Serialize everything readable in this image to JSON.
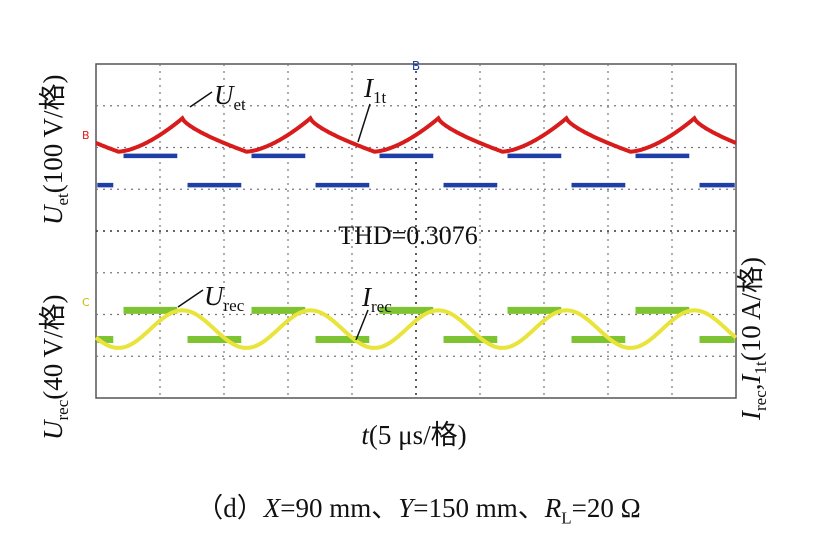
{
  "chart_data": {
    "type": "line",
    "title": "",
    "xlabel": "t(5 μs/格)",
    "ylabel_left": "Uet(100 V/格) Urec(40 V/格)",
    "ylabel_right": "Irec,I1t(10 A/格)",
    "divisions": {
      "x": 10,
      "y": 8
    },
    "period_div": 2,
    "annotation": "THD=0.3076",
    "series": [
      {
        "name": "Uet",
        "color": "#1f3fa6",
        "kind": "square",
        "high_div": 5.8,
        "low_div": 5.1,
        "unit": "100 V/格"
      },
      {
        "name": "I1t",
        "color": "#d81b1b",
        "kind": "current",
        "center_div": 6.3,
        "amp_div": 0.4,
        "unit": "10 A/格"
      },
      {
        "name": "Urec",
        "color": "#7ec332",
        "kind": "square",
        "high_div": 2.1,
        "low_div": 1.4,
        "unit": "40 V/格"
      },
      {
        "name": "Irec",
        "color": "#e8e43a",
        "kind": "sine",
        "center_div": 1.65,
        "amp_div": 0.45,
        "unit": "10 A/格"
      }
    ],
    "labels": {
      "uet": {
        "main": "U",
        "sub": "et"
      },
      "i1t": {
        "main": "I",
        "sub": "1t"
      },
      "urec": {
        "main": "U",
        "sub": "rec"
      },
      "irec": {
        "main": "I",
        "sub": "rec"
      }
    }
  },
  "axis_text": {
    "left_top": {
      "main": "U",
      "sub": "et",
      "rest": "(100 V/格)"
    },
    "left_bottom": {
      "main": "U",
      "sub": "rec",
      "rest": "(40 V/格)"
    },
    "right": {
      "a": "I",
      "a_sub": "rec",
      "sep": ",",
      "b": "I",
      "b_sub": "1t",
      "rest": "(10 A/格)"
    },
    "bottom": {
      "main": "t",
      "rest": "(5 μs/格)"
    }
  },
  "caption": {
    "prefix": "（d）",
    "x_var": "X",
    "x_val": "=90 mm、",
    "y_var": "Y",
    "y_val": "=150 mm、",
    "r_var": "R",
    "r_sub": "L",
    "r_val": "=20 Ω"
  },
  "markers": {
    "top": "B",
    "left_ch1": "B",
    "left_ch2": "C"
  }
}
